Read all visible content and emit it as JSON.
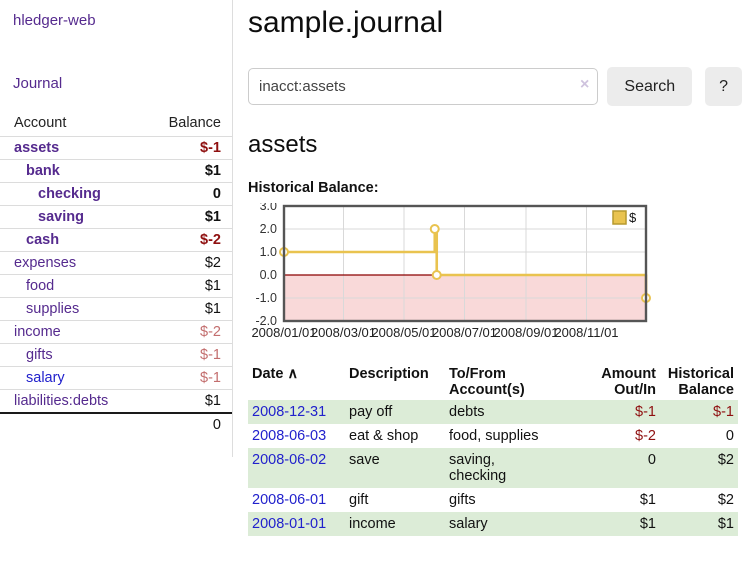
{
  "app": {
    "brand": "hledger-web",
    "nav_journal": "Journal"
  },
  "colors": {
    "accent_purple": "#552a8e",
    "link_blue": "#2121cc",
    "negative_red": "#8f1010",
    "faded_red": "#c36e6e",
    "row_green": "#dcecd7",
    "chart_gold": "#e9c34f"
  },
  "sidebar": {
    "columns": {
      "account": "Account",
      "balance": "Balance"
    },
    "accounts": [
      {
        "name": "assets",
        "indent": 0,
        "bold": true,
        "blue": false,
        "balance": "$-1",
        "bclass": "neg"
      },
      {
        "name": "bank",
        "indent": 1,
        "bold": true,
        "blue": false,
        "balance": "$1",
        "bclass": "strong"
      },
      {
        "name": "checking",
        "indent": 2,
        "bold": true,
        "blue": false,
        "balance": "0",
        "bclass": "strong"
      },
      {
        "name": "saving",
        "indent": 2,
        "bold": true,
        "blue": false,
        "balance": "$1",
        "bclass": "strong"
      },
      {
        "name": "cash",
        "indent": 1,
        "bold": true,
        "blue": false,
        "balance": "$-2",
        "bclass": "neg"
      },
      {
        "name": "expenses",
        "indent": 0,
        "bold": false,
        "blue": false,
        "balance": "$2",
        "bclass": "plain"
      },
      {
        "name": "food",
        "indent": 1,
        "bold": false,
        "blue": false,
        "balance": "$1",
        "bclass": "plain"
      },
      {
        "name": "supplies",
        "indent": 1,
        "bold": false,
        "blue": false,
        "balance": "$1",
        "bclass": "plain"
      },
      {
        "name": "income",
        "indent": 0,
        "bold": false,
        "blue": false,
        "balance": "$-2",
        "bclass": "faded"
      },
      {
        "name": "gifts",
        "indent": 1,
        "bold": false,
        "blue": false,
        "balance": "$-1",
        "bclass": "faded"
      },
      {
        "name": "salary",
        "indent": 1,
        "bold": false,
        "blue": true,
        "balance": "$-1",
        "bclass": "faded"
      },
      {
        "name": "liabilities:debts",
        "indent": 0,
        "bold": false,
        "blue": false,
        "balance": "$1",
        "bclass": "plain"
      }
    ],
    "total": "0"
  },
  "main": {
    "title": "sample.journal",
    "search": {
      "value": "inacct:assets",
      "clear_icon": "×",
      "button_label": "Search",
      "help_label": "?"
    },
    "account_heading": "assets",
    "chart_heading": "Historical Balance:"
  },
  "chart_data": {
    "type": "line",
    "step": "after",
    "title": "Historical Balance",
    "series": [
      {
        "name": "$",
        "color": "#e9c34f",
        "points": [
          {
            "x": "2008-01-01",
            "d": 0,
            "y": 1
          },
          {
            "x": "2008-06-01",
            "d": 152,
            "y": 2
          },
          {
            "x": "2008-06-03",
            "d": 154,
            "y": 0
          },
          {
            "x": "2008-12-31",
            "d": 365,
            "y": -1
          }
        ]
      }
    ],
    "x_ticks": [
      "2008/01/01",
      "2008/03/01",
      "2008/05/01",
      "2008/07/01",
      "2008/09/01",
      "2008/11/01"
    ],
    "x_tick_days": [
      0,
      60,
      121,
      182,
      244,
      305
    ],
    "x_range_days": [
      0,
      365
    ],
    "y_ticks": [
      3,
      2,
      1,
      0,
      -1,
      -2
    ],
    "ylim": [
      -2,
      3
    ],
    "grid": true,
    "grid_color": "#d9d9d9",
    "zero_line_color": "#8b0000",
    "negative_region_color": "#f9d9d9",
    "border_color": "#555555",
    "legend": {
      "label": "$",
      "position": "top-right"
    }
  },
  "table": {
    "headers": [
      {
        "lines": [
          "Date"
        ],
        "align": "left",
        "sort": "asc"
      },
      {
        "lines": [
          "Description"
        ],
        "align": "left"
      },
      {
        "lines": [
          "To/From",
          "Account(s)"
        ],
        "align": "left"
      },
      {
        "lines": [
          "Amount",
          "Out/In"
        ],
        "align": "right"
      },
      {
        "lines": [
          "Historical",
          "Balance"
        ],
        "align": "right"
      }
    ],
    "sort_icon": "∧",
    "rows": [
      {
        "date": "2008-12-31",
        "description": "pay off",
        "accounts": [
          "debts"
        ],
        "amount": "$-1",
        "amount_neg": true,
        "balance": "$-1",
        "balance_neg": true,
        "shaded": true
      },
      {
        "date": "2008-06-03",
        "description": "eat & shop",
        "accounts": [
          "food, supplies"
        ],
        "amount": "$-2",
        "amount_neg": true,
        "balance": "0",
        "balance_neg": false,
        "shaded": false
      },
      {
        "date": "2008-06-02",
        "description": "save",
        "accounts": [
          "saving,",
          "checking"
        ],
        "amount": "0",
        "amount_neg": false,
        "balance": "$2",
        "balance_neg": false,
        "shaded": true
      },
      {
        "date": "2008-06-01",
        "description": "gift",
        "accounts": [
          "gifts"
        ],
        "amount": "$1",
        "amount_neg": false,
        "balance": "$2",
        "balance_neg": false,
        "shaded": false
      },
      {
        "date": "2008-01-01",
        "description": "income",
        "accounts": [
          "salary"
        ],
        "amount": "$1",
        "amount_neg": false,
        "balance": "$1",
        "balance_neg": false,
        "shaded": true
      }
    ]
  }
}
